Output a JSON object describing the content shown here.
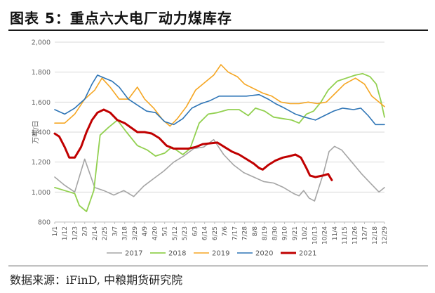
{
  "header": {
    "title": "图表 5：重点六大电厂动力煤库存"
  },
  "footer": {
    "source": "数据来源：iFinD, 中粮期货研究院"
  },
  "chart_data": {
    "type": "line",
    "ylabel": "万吨/日",
    "ylim": [
      800,
      2000
    ],
    "yticks": [
      "800",
      "1,000",
      "1,200",
      "1,400",
      "1,600",
      "1,800",
      "2,000"
    ],
    "xticks": [
      "1/1",
      "1/12",
      "1/23",
      "2/3",
      "2/14",
      "2/25",
      "3/7",
      "3/18",
      "3/29",
      "4/9",
      "4/20",
      "5/1",
      "5/12",
      "5/23",
      "6/3",
      "6/14",
      "6/25",
      "7/6",
      "7/17",
      "7/28",
      "8/8",
      "8/19",
      "8/30",
      "9/10",
      "9/21",
      "10/2",
      "10/13",
      "10/24",
      "11/4",
      "11/15",
      "11/26",
      "12/7",
      "12/18",
      "12/29"
    ],
    "grid": true,
    "legend_position": "bottom",
    "series": [
      {
        "name": "2017",
        "color": "#a5a5a5",
        "width": 1.6,
        "points": [
          [
            1,
            1100
          ],
          [
            12,
            1045
          ],
          [
            23,
            1000
          ],
          [
            34,
            1220
          ],
          [
            45,
            1030
          ],
          [
            55,
            1010
          ],
          [
            66,
            980
          ],
          [
            77,
            1010
          ],
          [
            88,
            970
          ],
          [
            99,
            1040
          ],
          [
            110,
            1090
          ],
          [
            121,
            1140
          ],
          [
            132,
            1200
          ],
          [
            143,
            1240
          ],
          [
            154,
            1290
          ],
          [
            165,
            1300
          ],
          [
            176,
            1350
          ],
          [
            187,
            1250
          ],
          [
            198,
            1180
          ],
          [
            209,
            1130
          ],
          [
            220,
            1100
          ],
          [
            231,
            1070
          ],
          [
            242,
            1060
          ],
          [
            253,
            1030
          ],
          [
            264,
            990
          ],
          [
            270,
            975
          ],
          [
            275,
            1010
          ],
          [
            281,
            960
          ],
          [
            287,
            940
          ],
          [
            297,
            1130
          ],
          [
            303,
            1270
          ],
          [
            309,
            1305
          ],
          [
            317,
            1280
          ],
          [
            328,
            1200
          ],
          [
            339,
            1120
          ],
          [
            350,
            1050
          ],
          [
            358,
            1000
          ],
          [
            364,
            1030
          ]
        ]
      },
      {
        "name": "2018",
        "color": "#92d050",
        "width": 1.8,
        "points": [
          [
            1,
            1030
          ],
          [
            12,
            1010
          ],
          [
            23,
            990
          ],
          [
            28,
            910
          ],
          [
            36,
            870
          ],
          [
            44,
            1010
          ],
          [
            51,
            1380
          ],
          [
            60,
            1430
          ],
          [
            70,
            1480
          ],
          [
            80,
            1400
          ],
          [
            92,
            1310
          ],
          [
            103,
            1280
          ],
          [
            112,
            1240
          ],
          [
            122,
            1260
          ],
          [
            130,
            1300
          ],
          [
            135,
            1280
          ],
          [
            142,
            1250
          ],
          [
            150,
            1290
          ],
          [
            160,
            1460
          ],
          [
            170,
            1520
          ],
          [
            180,
            1530
          ],
          [
            192,
            1550
          ],
          [
            204,
            1550
          ],
          [
            214,
            1510
          ],
          [
            222,
            1560
          ],
          [
            232,
            1540
          ],
          [
            242,
            1500
          ],
          [
            252,
            1490
          ],
          [
            262,
            1480
          ],
          [
            270,
            1460
          ],
          [
            278,
            1520
          ],
          [
            286,
            1540
          ],
          [
            294,
            1600
          ],
          [
            302,
            1680
          ],
          [
            312,
            1740
          ],
          [
            322,
            1760
          ],
          [
            332,
            1780
          ],
          [
            340,
            1790
          ],
          [
            348,
            1770
          ],
          [
            355,
            1720
          ],
          [
            360,
            1610
          ],
          [
            364,
            1500
          ]
        ]
      },
      {
        "name": "2019",
        "color": "#f5a623",
        "width": 1.6,
        "points": [
          [
            1,
            1460
          ],
          [
            12,
            1460
          ],
          [
            23,
            1520
          ],
          [
            34,
            1620
          ],
          [
            45,
            1680
          ],
          [
            53,
            1760
          ],
          [
            62,
            1700
          ],
          [
            72,
            1620
          ],
          [
            82,
            1620
          ],
          [
            92,
            1700
          ],
          [
            100,
            1620
          ],
          [
            110,
            1560
          ],
          [
            120,
            1480
          ],
          [
            128,
            1440
          ],
          [
            136,
            1490
          ],
          [
            146,
            1570
          ],
          [
            156,
            1680
          ],
          [
            166,
            1730
          ],
          [
            176,
            1780
          ],
          [
            184,
            1850
          ],
          [
            192,
            1800
          ],
          [
            202,
            1770
          ],
          [
            210,
            1720
          ],
          [
            220,
            1690
          ],
          [
            230,
            1660
          ],
          [
            240,
            1640
          ],
          [
            250,
            1600
          ],
          [
            260,
            1590
          ],
          [
            270,
            1590
          ],
          [
            280,
            1600
          ],
          [
            290,
            1590
          ],
          [
            300,
            1600
          ],
          [
            310,
            1660
          ],
          [
            320,
            1720
          ],
          [
            332,
            1760
          ],
          [
            342,
            1720
          ],
          [
            350,
            1640
          ],
          [
            358,
            1600
          ],
          [
            364,
            1570
          ]
        ]
      },
      {
        "name": "2020",
        "color": "#2e75b6",
        "width": 1.6,
        "points": [
          [
            1,
            1550
          ],
          [
            12,
            1520
          ],
          [
            23,
            1560
          ],
          [
            34,
            1620
          ],
          [
            42,
            1720
          ],
          [
            48,
            1780
          ],
          [
            56,
            1760
          ],
          [
            64,
            1740
          ],
          [
            72,
            1700
          ],
          [
            82,
            1620
          ],
          [
            92,
            1580
          ],
          [
            102,
            1540
          ],
          [
            112,
            1530
          ],
          [
            122,
            1470
          ],
          [
            132,
            1450
          ],
          [
            142,
            1490
          ],
          [
            152,
            1560
          ],
          [
            162,
            1590
          ],
          [
            172,
            1610
          ],
          [
            182,
            1640
          ],
          [
            198,
            1640
          ],
          [
            212,
            1640
          ],
          [
            226,
            1650
          ],
          [
            236,
            1620
          ],
          [
            244,
            1590
          ],
          [
            254,
            1560
          ],
          [
            266,
            1520
          ],
          [
            276,
            1500
          ],
          [
            288,
            1480
          ],
          [
            298,
            1510
          ],
          [
            308,
            1540
          ],
          [
            318,
            1560
          ],
          [
            330,
            1550
          ],
          [
            338,
            1560
          ],
          [
            346,
            1510
          ],
          [
            354,
            1450
          ],
          [
            364,
            1450
          ]
        ]
      },
      {
        "name": "2021",
        "color": "#c00000",
        "width": 3,
        "points": [
          [
            1,
            1390
          ],
          [
            6,
            1370
          ],
          [
            12,
            1300
          ],
          [
            17,
            1230
          ],
          [
            23,
            1230
          ],
          [
            30,
            1300
          ],
          [
            36,
            1400
          ],
          [
            42,
            1480
          ],
          [
            48,
            1530
          ],
          [
            55,
            1550
          ],
          [
            62,
            1530
          ],
          [
            70,
            1480
          ],
          [
            78,
            1460
          ],
          [
            85,
            1430
          ],
          [
            92,
            1400
          ],
          [
            100,
            1400
          ],
          [
            108,
            1390
          ],
          [
            116,
            1360
          ],
          [
            124,
            1310
          ],
          [
            132,
            1290
          ],
          [
            140,
            1290
          ],
          [
            148,
            1290
          ],
          [
            156,
            1300
          ],
          [
            164,
            1320
          ],
          [
            172,
            1325
          ],
          [
            180,
            1330
          ],
          [
            188,
            1300
          ],
          [
            196,
            1270
          ],
          [
            204,
            1250
          ],
          [
            212,
            1220
          ],
          [
            220,
            1190
          ],
          [
            226,
            1160
          ],
          [
            230,
            1150
          ],
          [
            236,
            1180
          ],
          [
            244,
            1210
          ],
          [
            252,
            1230
          ],
          [
            260,
            1240
          ],
          [
            266,
            1250
          ],
          [
            272,
            1230
          ],
          [
            278,
            1160
          ],
          [
            282,
            1110
          ],
          [
            288,
            1100
          ],
          [
            296,
            1110
          ],
          [
            302,
            1120
          ],
          [
            306,
            1080
          ]
        ]
      }
    ]
  }
}
